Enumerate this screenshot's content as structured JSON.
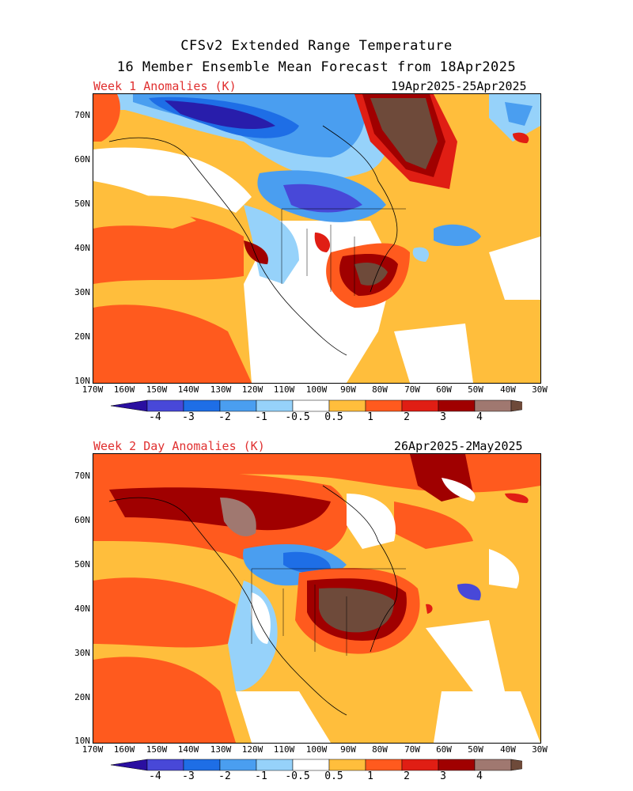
{
  "header": {
    "line1": "CFSv2 Extended Range Temperature",
    "line2": "16 Member Ensemble Mean Forecast from 18Apr2025"
  },
  "panels": [
    {
      "label": "Week 1 Anomalies (K)",
      "dates": "19Apr2025-25Apr2025"
    },
    {
      "label": "Week 2 Day Anomalies (K)",
      "dates": "26Apr2025-2May2025"
    }
  ],
  "lat_labels": [
    "70N",
    "60N",
    "50N",
    "40N",
    "30N",
    "20N",
    "10N"
  ],
  "lon_labels": [
    "170W",
    "160W",
    "150W",
    "140W",
    "130W",
    "120W",
    "110W",
    "100W",
    "90W",
    "80W",
    "70W",
    "60W",
    "50W",
    "40W",
    "30W"
  ],
  "colorbar": {
    "ticks": [
      "-4",
      "-3",
      "-2",
      "-1",
      "-0.5",
      "0.5",
      "1",
      "2",
      "3",
      "4"
    ],
    "colors": [
      "#2a0fa0",
      "#4848d8",
      "#1e6ee6",
      "#4a9ef0",
      "#96d2fa",
      "#ffffff",
      "#ffbe3c",
      "#ff5a1e",
      "#e01e14",
      "#a00000",
      "#a07870",
      "#6e4a3a"
    ]
  }
}
